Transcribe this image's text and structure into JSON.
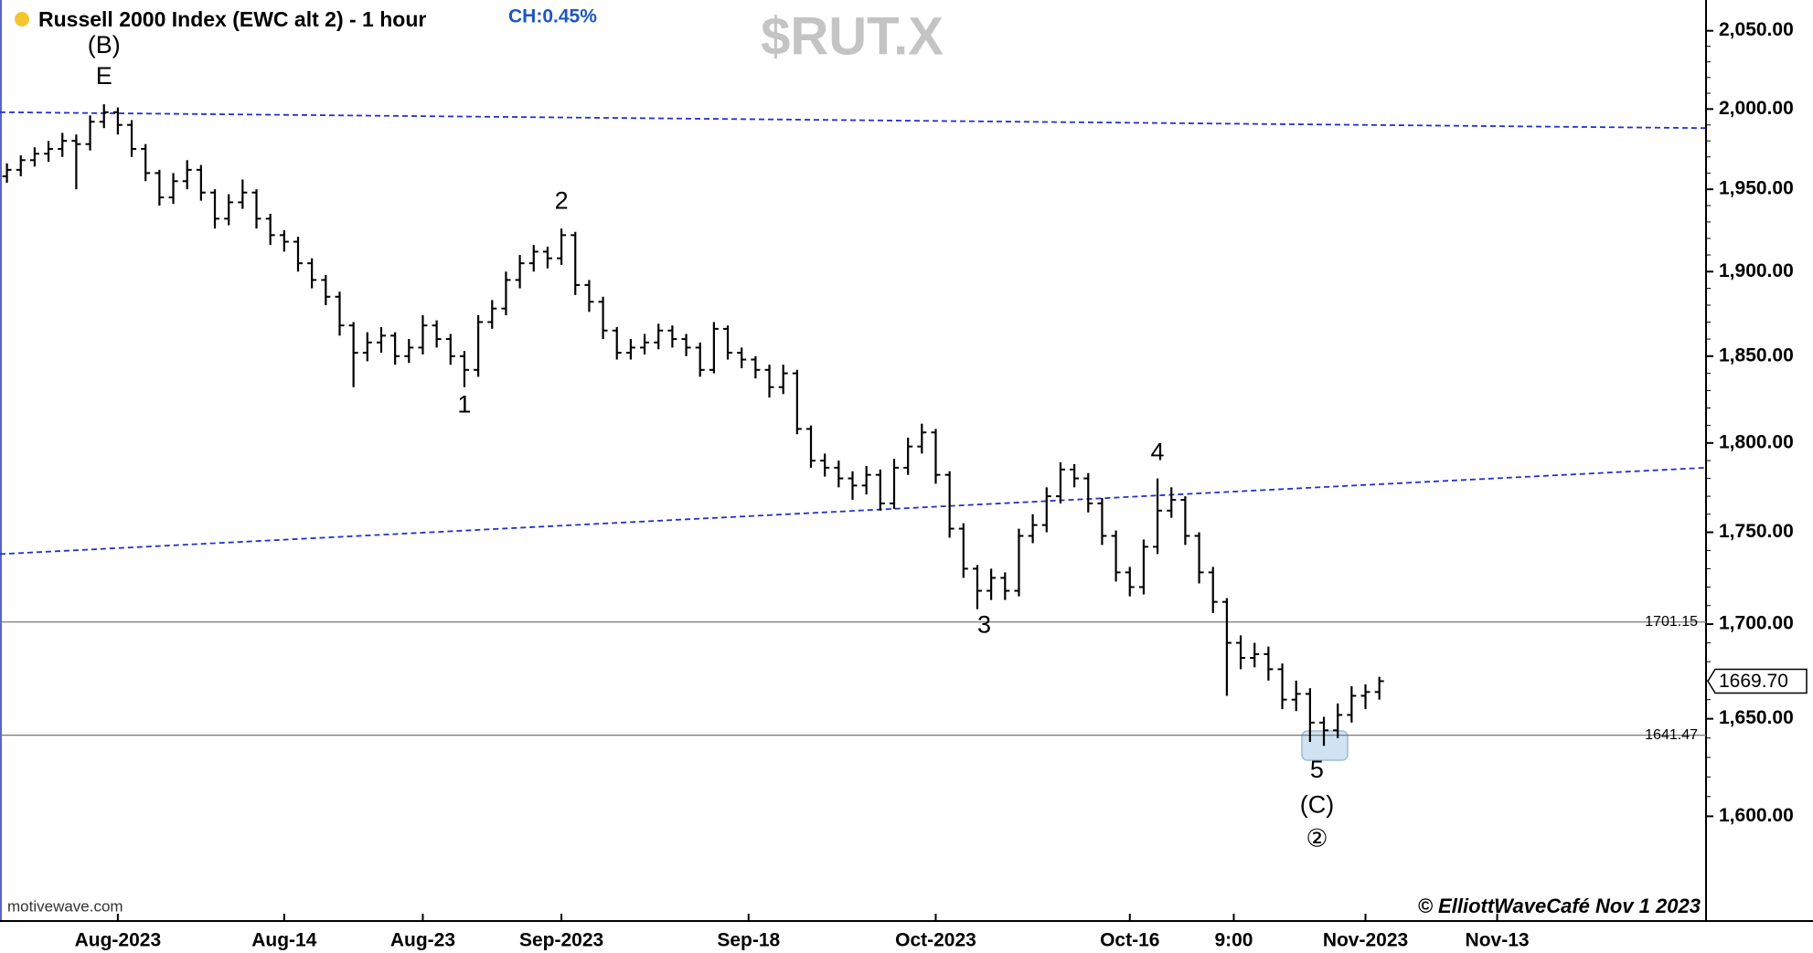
{
  "chart_data": {
    "type": "ohlc",
    "title": "Russell 2000 Index (EWC alt 2) - 1 hour",
    "change_label": "CH:0.45%",
    "symbol": "$RUT.X",
    "source": "motivewave.com",
    "copyright": "© ElliottWaveCafé Nov 1  2023",
    "log_scale": true,
    "color": "#000000",
    "xlim": [
      -0.5,
      122.5
    ],
    "xticks": [
      {
        "value": 8,
        "label": "Aug-2023"
      },
      {
        "value": 20,
        "label": "Aug-14"
      },
      {
        "value": 30,
        "label": "Aug-23"
      },
      {
        "value": 40,
        "label": "Sep-2023"
      },
      {
        "value": 53.5,
        "label": "Sep-18"
      },
      {
        "value": 67,
        "label": "Oct-2023"
      },
      {
        "value": 81,
        "label": "Oct-16"
      },
      {
        "value": 88.5,
        "label": "9:00"
      },
      {
        "value": 98,
        "label": "Nov-2023"
      },
      {
        "value": 107.5,
        "label": "Nov-13"
      }
    ],
    "ylim": [
      1548,
      2070
    ],
    "yticks": [
      {
        "value": 1600,
        "label": "1,600.00"
      },
      {
        "value": 1650,
        "label": "1,650.00"
      },
      {
        "value": 1700,
        "label": "1,700.00"
      },
      {
        "value": 1750,
        "label": "1,750.00"
      },
      {
        "value": 1800,
        "label": "1,800.00"
      },
      {
        "value": 1850,
        "label": "1,850.00"
      },
      {
        "value": 1900,
        "label": "1,900.00"
      },
      {
        "value": 1950,
        "label": "1,950.00"
      },
      {
        "value": 2000,
        "label": "2,000.00"
      },
      {
        "value": 2050,
        "label": "2,050.00"
      }
    ],
    "open": [
      1958,
      1962,
      1968,
      1972,
      1975,
      1980,
      1978,
      1992,
      1998,
      1990,
      1975,
      1960,
      1945,
      1955,
      1962,
      1948,
      1932,
      1942,
      1948,
      1932,
      1922,
      1918,
      1905,
      1895,
      1885,
      1868,
      1852,
      1858,
      1862,
      1850,
      1855,
      1868,
      1860,
      1850,
      1842,
      1870,
      1878,
      1895,
      1905,
      1912,
      1908,
      1922,
      1892,
      1882,
      1865,
      1852,
      1855,
      1858,
      1865,
      1860,
      1855,
      1842,
      1866,
      1852,
      1848,
      1842,
      1832,
      1840,
      1808,
      1790,
      1786,
      1780,
      1776,
      1782,
      1766,
      1786,
      1798,
      1806,
      1782,
      1752,
      1730,
      1718,
      1725,
      1718,
      1748,
      1754,
      1770,
      1785,
      1780,
      1766,
      1748,
      1728,
      1720,
      1742,
      1762,
      1768,
      1748,
      1728,
      1712,
      1690,
      1682,
      1684,
      1676,
      1660,
      1663,
      1648,
      1644,
      1652,
      1662,
      1664
    ],
    "high": [
      1966,
      1971,
      1976,
      1980,
      1985,
      1984,
      1996,
      2003,
      2001,
      1993,
      1978,
      1962,
      1960,
      1968,
      1965,
      1950,
      1947,
      1956,
      1950,
      1935,
      1925,
      1921,
      1908,
      1898,
      1888,
      1870,
      1864,
      1867,
      1864,
      1860,
      1874,
      1871,
      1863,
      1853,
      1874,
      1883,
      1900,
      1910,
      1916,
      1915,
      1926,
      1924,
      1895,
      1885,
      1867,
      1860,
      1863,
      1869,
      1868,
      1863,
      1858,
      1870,
      1868,
      1855,
      1850,
      1845,
      1845,
      1842,
      1810,
      1794,
      1790,
      1784,
      1787,
      1785,
      1791,
      1803,
      1811,
      1808,
      1784,
      1755,
      1732,
      1730,
      1728,
      1752,
      1760,
      1775,
      1789,
      1788,
      1783,
      1769,
      1751,
      1731,
      1746,
      1780,
      1775,
      1770,
      1750,
      1731,
      1714,
      1694,
      1690,
      1688,
      1679,
      1670,
      1666,
      1651,
      1658,
      1667,
      1668,
      1672
    ],
    "low": [
      1954,
      1958,
      1964,
      1967,
      1970,
      1950,
      1974,
      1988,
      1984,
      1970,
      1955,
      1940,
      1941,
      1950,
      1943,
      1926,
      1928,
      1938,
      1926,
      1916,
      1912,
      1900,
      1890,
      1880,
      1862,
      1832,
      1847,
      1852,
      1845,
      1846,
      1851,
      1855,
      1845,
      1832,
      1838,
      1866,
      1874,
      1890,
      1900,
      1902,
      1904,
      1886,
      1876,
      1860,
      1848,
      1848,
      1851,
      1854,
      1855,
      1850,
      1838,
      1840,
      1848,
      1843,
      1837,
      1826,
      1828,
      1805,
      1786,
      1781,
      1775,
      1768,
      1771,
      1762,
      1763,
      1782,
      1794,
      1777,
      1747,
      1725,
      1708,
      1713,
      1713,
      1715,
      1744,
      1750,
      1766,
      1775,
      1761,
      1743,
      1723,
      1715,
      1716,
      1738,
      1758,
      1743,
      1722,
      1706,
      1662,
      1676,
      1677,
      1670,
      1655,
      1654,
      1638,
      1636,
      1640,
      1648,
      1655,
      1660
    ],
    "close": [
      1962,
      1968,
      1972,
      1975,
      1980,
      1978,
      1992,
      1998,
      1990,
      1975,
      1960,
      1945,
      1955,
      1962,
      1948,
      1932,
      1942,
      1948,
      1932,
      1922,
      1918,
      1905,
      1895,
      1885,
      1868,
      1852,
      1858,
      1862,
      1850,
      1855,
      1868,
      1860,
      1850,
      1842,
      1870,
      1878,
      1895,
      1905,
      1912,
      1908,
      1922,
      1892,
      1882,
      1865,
      1852,
      1855,
      1858,
      1865,
      1860,
      1855,
      1842,
      1866,
      1852,
      1848,
      1842,
      1832,
      1840,
      1808,
      1790,
      1786,
      1780,
      1776,
      1782,
      1766,
      1786,
      1798,
      1806,
      1782,
      1752,
      1730,
      1718,
      1725,
      1718,
      1748,
      1754,
      1770,
      1785,
      1780,
      1766,
      1748,
      1728,
      1720,
      1742,
      1762,
      1768,
      1748,
      1728,
      1712,
      1690,
      1682,
      1684,
      1676,
      1660,
      1663,
      1648,
      1644,
      1652,
      1662,
      1664,
      1669.7
    ],
    "last_price": {
      "value": 1669.7,
      "label": "1669.70"
    },
    "hlines": [
      1701.15,
      1641.47
    ],
    "trendlines": [
      {
        "x": [
          -0.5,
          122.5
        ],
        "y": [
          1998,
          1988
        ],
        "color": "#2630c8"
      },
      {
        "x": [
          -0.5,
          122.5
        ],
        "y": [
          1738,
          1786
        ],
        "color": "#2630c8"
      }
    ],
    "annotations": [
      {
        "text": "(B)",
        "x": 7,
        "y": 2040
      },
      {
        "text": "E",
        "x": 7,
        "y": 2020
      },
      {
        "text": "1",
        "x": 33,
        "y": 1821
      },
      {
        "text": "2",
        "x": 40,
        "y": 1942
      },
      {
        "text": "3",
        "x": 70.5,
        "y": 1699
      },
      {
        "text": "4",
        "x": 83,
        "y": 1794
      },
      {
        "text": "5",
        "x": 94.5,
        "y": 1623
      },
      {
        "text": "(C)",
        "x": 94.5,
        "y": 1605
      },
      {
        "text": "②",
        "x": 94.5,
        "y": 1588
      }
    ]
  }
}
